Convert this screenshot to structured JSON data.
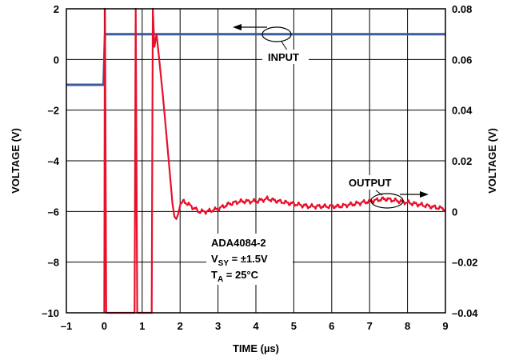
{
  "chart_data": {
    "type": "line",
    "title": "",
    "xlabel": "TIME (µs)",
    "ylabel_left": "VOLTAGE (V)",
    "ylabel_right": "VOLTAGE (V)",
    "xlim": [
      -1,
      9
    ],
    "ylim_left": [
      -10,
      2
    ],
    "ylim_right": [
      -0.04,
      0.08
    ],
    "grid": true,
    "x_ticks": [
      "–1",
      "0",
      "1",
      "2",
      "3",
      "4",
      "5",
      "6",
      "7",
      "8",
      "9"
    ],
    "y_left_ticks": [
      "–10",
      "–8",
      "–6",
      "–4",
      "–2",
      "0",
      "2"
    ],
    "y_right_ticks": [
      "–0.04",
      "–0.02",
      "0",
      "0.02",
      "0.04",
      "0.06",
      "0.08"
    ],
    "series": [
      {
        "name": "INPUT",
        "axis": "left",
        "color": "#3a5d99",
        "x": [
          -1,
          -0.02,
          0.02,
          9
        ],
        "y": [
          -1.0,
          -1.0,
          1.0,
          1.0
        ]
      },
      {
        "name": "OUTPUT",
        "axis": "right",
        "color": "#e8102a",
        "x": [
          0.0,
          0.02,
          0.05,
          0.8,
          0.83,
          0.87,
          1.25,
          1.28,
          1.32,
          1.38,
          1.45,
          1.55,
          1.7,
          1.8,
          1.85,
          1.9,
          1.95,
          2.0,
          2.1,
          2.3,
          2.5,
          2.7,
          3.0,
          3.3,
          3.6,
          4.0,
          4.3,
          4.6,
          5.0,
          5.4,
          5.8,
          6.2,
          6.6,
          7.0,
          7.4,
          7.8,
          8.2,
          8.6,
          9.0
        ],
        "y": [
          -0.04,
          0.08,
          -0.04,
          -0.04,
          0.08,
          -0.04,
          -0.04,
          0.08,
          0.065,
          0.07,
          0.06,
          0.045,
          0.02,
          0.003,
          -0.002,
          -0.003,
          -0.001,
          0.003,
          0.004,
          0.002,
          0.0,
          0.0,
          0.001,
          0.003,
          0.004,
          0.004,
          0.005,
          0.004,
          0.003,
          0.002,
          0.002,
          0.002,
          0.003,
          0.004,
          0.005,
          0.004,
          0.003,
          0.002,
          0.001
        ]
      }
    ],
    "annotations": {
      "input_label": "INPUT",
      "output_label": "OUTPUT",
      "device": "ADA4084-2",
      "vsy_main": "V",
      "vsy_sub": "SY",
      "vsy_value": " = ±1.5V",
      "ta_main": "T",
      "ta_sub": "A",
      "ta_value": " = 25°C"
    },
    "colors": {
      "input": "#3a5d99",
      "output": "#e8102a",
      "grid": "#000000"
    }
  }
}
